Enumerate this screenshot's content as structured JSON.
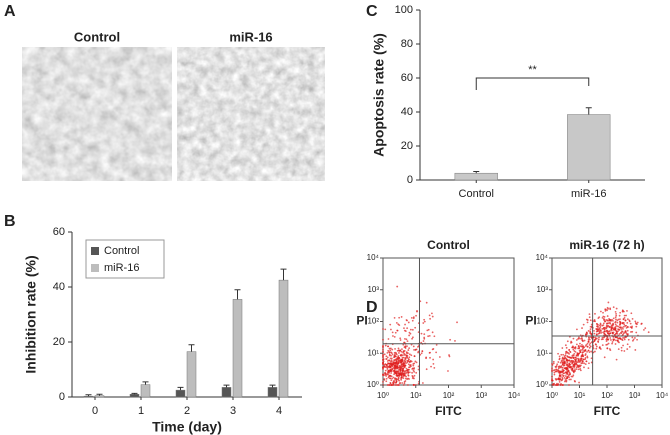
{
  "panel_labels": [
    "A",
    "B",
    "C",
    "D"
  ],
  "images": {
    "labels": [
      "Control",
      "miR-16"
    ]
  },
  "chart_data": [
    {
      "type": "bar",
      "ylabel": "Apoptosis rate (%)",
      "categories": [
        "Control",
        "miR-16"
      ],
      "values": [
        4,
        38.5
      ],
      "errors": [
        1,
        4
      ],
      "color": "#c8c8c8",
      "ylim": [
        0,
        100
      ],
      "yticks": [
        0,
        20,
        40,
        60,
        80,
        100
      ],
      "annotation": "**"
    },
    {
      "type": "bar",
      "xlabel": "Time (day)",
      "ylabel": "Inhibition rate (%)",
      "categories": [
        "0",
        "1",
        "2",
        "3",
        "4"
      ],
      "series": [
        {
          "name": "Control",
          "color": "#555555",
          "values": [
            0.3,
            1,
            2.5,
            3.5,
            3.5
          ],
          "errors": [
            0.5,
            0.3,
            1,
            0.8,
            0.8
          ]
        },
        {
          "name": "miR-16",
          "color": "#bdbdbd",
          "values": [
            0.5,
            4.5,
            16.5,
            35.5,
            42.5
          ],
          "errors": [
            0.5,
            1,
            2.5,
            3.5,
            4
          ]
        }
      ],
      "ylim": [
        0,
        60
      ],
      "yticks": [
        0,
        20,
        40,
        60
      ],
      "legend": "upper-left"
    },
    {
      "type": "scatter",
      "title": "Control",
      "xlabel": "FITC",
      "ylabel": "PI",
      "xscale": "log",
      "yscale": "log",
      "xlim": [
        1,
        10000
      ],
      "ylim": [
        1,
        10000
      ],
      "xticks": [
        {
          "value": 1,
          "label": "10⁰"
        },
        {
          "value": 10,
          "label": "10¹"
        },
        {
          "value": 100,
          "label": "10²"
        },
        {
          "value": 1000,
          "label": "10³"
        },
        {
          "value": 10000,
          "label": "10⁴"
        }
      ],
      "yticks": [
        {
          "value": 1,
          "label": "10⁰"
        },
        {
          "value": 10,
          "label": "10¹"
        },
        {
          "value": 100,
          "label": "10²"
        },
        {
          "value": 1000,
          "label": "10³"
        },
        {
          "value": 10000,
          "label": "10⁴"
        }
      ],
      "gates": {
        "x": 13,
        "y": 20
      },
      "color": "#e02020"
    },
    {
      "type": "scatter",
      "title": "miR-16   (72 h)",
      "xlabel": "FITC",
      "ylabel": "PI",
      "xscale": "log",
      "yscale": "log",
      "xlim": [
        1,
        10000
      ],
      "ylim": [
        1,
        10000
      ],
      "xticks": [
        {
          "value": 1,
          "label": "10⁰"
        },
        {
          "value": 10,
          "label": "10¹"
        },
        {
          "value": 100,
          "label": "10²"
        },
        {
          "value": 1000,
          "label": "10³"
        },
        {
          "value": 10000,
          "label": "10⁴"
        }
      ],
      "yticks": [
        {
          "value": 1,
          "label": "10⁰"
        },
        {
          "value": 10,
          "label": "10¹"
        },
        {
          "value": 100,
          "label": "10²"
        },
        {
          "value": 1000,
          "label": "10³"
        },
        {
          "value": 10000,
          "label": "10⁴"
        }
      ],
      "gates": {
        "x": 30,
        "y": 35
      },
      "color": "#e02020"
    }
  ]
}
